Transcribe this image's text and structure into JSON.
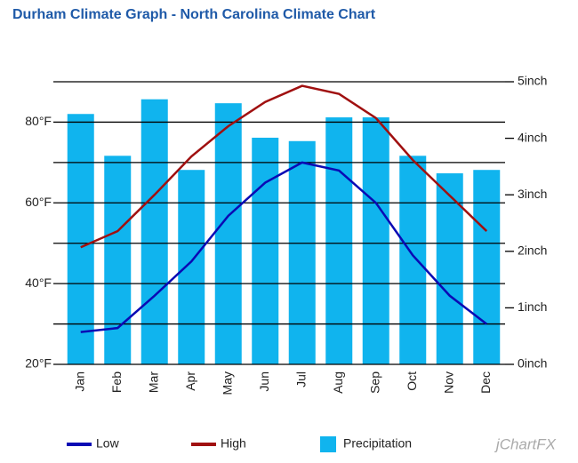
{
  "chart_data": {
    "type": "bar-line",
    "title": "Durham Climate Graph - North Carolina Climate Chart",
    "categories": [
      "Jan",
      "Feb",
      "Mar",
      "Apr",
      "May",
      "Jun",
      "Jul",
      "Aug",
      "Sep",
      "Oct",
      "Nov",
      "Dec"
    ],
    "series": [
      {
        "name": "Low",
        "type": "line",
        "color": "#0a0ab4",
        "axis": "y",
        "values": [
          28,
          29,
          37,
          45.5,
          56.8,
          65,
          70,
          68,
          60,
          47,
          37,
          30
        ]
      },
      {
        "name": "High",
        "type": "line",
        "color": "#a01010",
        "axis": "y",
        "values": [
          49,
          53,
          62,
          71.5,
          79,
          85,
          89,
          87,
          81,
          70.6,
          61.8,
          53
        ]
      },
      {
        "name": "Precipitation",
        "type": "bar",
        "color": "#10b4ee",
        "axis": "y2",
        "values": [
          4.43,
          3.69,
          4.69,
          3.44,
          4.62,
          4.01,
          3.95,
          4.37,
          4.37,
          3.69,
          3.38,
          3.44
        ]
      }
    ],
    "ylim": [
      20,
      90
    ],
    "yticks": [
      {
        "value": 20,
        "label": "20°F"
      },
      {
        "value": 30,
        "label": null
      },
      {
        "value": 40,
        "label": "40°F"
      },
      {
        "value": 50,
        "label": null
      },
      {
        "value": 60,
        "label": "60°F"
      },
      {
        "value": 70,
        "label": null
      },
      {
        "value": 80,
        "label": "80°F"
      },
      {
        "value": 90,
        "label": null
      }
    ],
    "y2lim": [
      0,
      5
    ],
    "y2ticks": [
      {
        "value": 0,
        "label": "0inch"
      },
      {
        "value": 1,
        "label": "1inch"
      },
      {
        "value": 2,
        "label": "2inch"
      },
      {
        "value": 3,
        "label": "3inch"
      },
      {
        "value": 4,
        "label": "4inch"
      },
      {
        "value": 5,
        "label": "5inch"
      }
    ],
    "grid": true,
    "legend": "bottom",
    "watermark": "jChartFX"
  }
}
